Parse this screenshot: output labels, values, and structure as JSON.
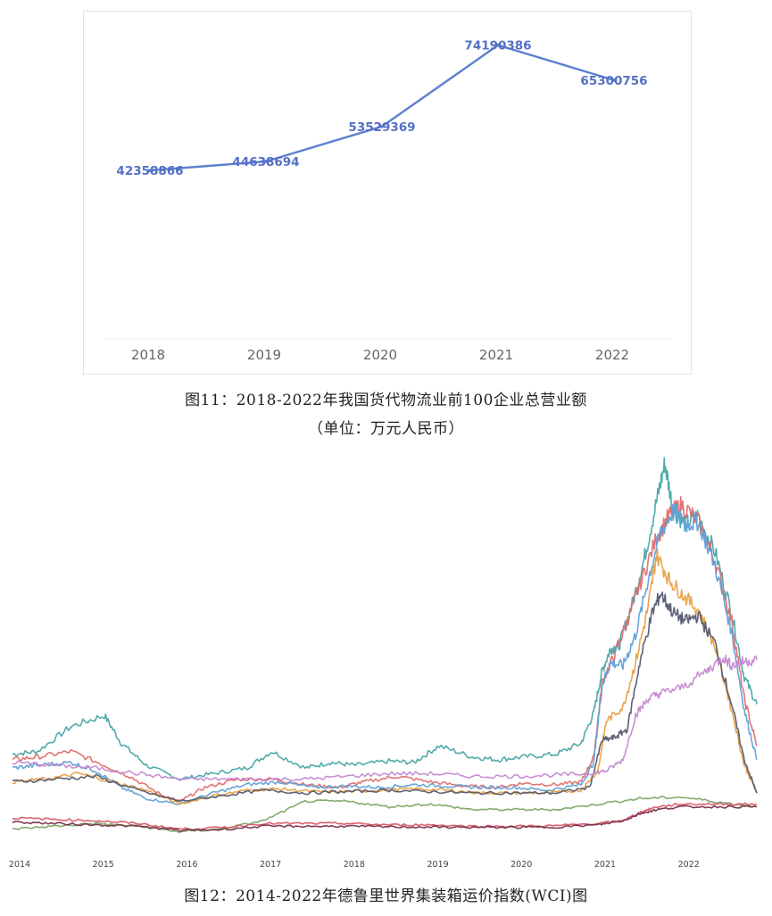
{
  "chart_data": [
    {
      "type": "line",
      "categories": [
        "2018",
        "2019",
        "2020",
        "2021",
        "2022"
      ],
      "values": [
        42358866,
        44638694,
        53529369,
        74190386,
        65300756
      ],
      "data_labels": [
        "42358866",
        "44638694",
        "53529369",
        "74190386",
        "65300756"
      ],
      "title": "图11：2018-2022年我国货代物流业前100企业总营业额",
      "subtitle": "（单位：万元人民币）",
      "ylim": [
        0,
        80000000
      ],
      "grid": false,
      "colors": {
        "line": "#5b7fcf",
        "label": "#5470c6",
        "axis_text": "#666666"
      }
    },
    {
      "type": "line",
      "title": "图12：2014-2022年德鲁里世界集装箱运价指数(WCI)图",
      "x_ticks": [
        "2014",
        "2015",
        "2016",
        "2017",
        "2018",
        "2019",
        "2020",
        "2021",
        "2022"
      ],
      "x_range": [
        2014.0,
        2022.9
      ],
      "ylim": [
        0,
        14000
      ],
      "grid": false,
      "series": [
        {
          "color": "#4aa5a5",
          "x": [
            2014.0,
            2014.3,
            2014.7,
            2015.1,
            2015.3,
            2015.6,
            2016.0,
            2016.4,
            2016.8,
            2017.1,
            2017.5,
            2017.8,
            2018.1,
            2018.5,
            2018.8,
            2019.1,
            2019.5,
            2019.8,
            2020.1,
            2020.5,
            2020.8,
            2020.95,
            2021.05,
            2021.15,
            2021.25,
            2021.4,
            2021.55,
            2021.7,
            2021.8,
            2021.9,
            2022.05,
            2022.2,
            2022.4,
            2022.6,
            2022.75,
            2022.9
          ],
          "y": [
            3200,
            3300,
            4200,
            4600,
            3600,
            2800,
            2300,
            2500,
            2700,
            3300,
            2700,
            2900,
            2800,
            2950,
            2900,
            3500,
            3100,
            3000,
            3100,
            3200,
            3600,
            4700,
            6200,
            7000,
            7100,
            8500,
            10200,
            12300,
            13700,
            12000,
            11500,
            11800,
            10500,
            8300,
            6000,
            5000
          ]
        },
        {
          "color": "#e26d6d",
          "x": [
            2014.0,
            2014.3,
            2014.7,
            2015.1,
            2015.4,
            2015.8,
            2016.0,
            2016.3,
            2016.7,
            2017.1,
            2017.5,
            2017.9,
            2018.2,
            2018.6,
            2019.0,
            2019.4,
            2019.8,
            2020.1,
            2020.5,
            2020.8,
            2020.95,
            2021.05,
            2021.2,
            2021.35,
            2021.5,
            2021.7,
            2021.85,
            2022.0,
            2022.2,
            2022.4,
            2022.6,
            2022.75,
            2022.9
          ],
          "y": [
            3000,
            3100,
            3300,
            2800,
            2400,
            1700,
            1500,
            2000,
            2300,
            2300,
            2100,
            2000,
            2200,
            2400,
            2200,
            2050,
            2000,
            2150,
            2100,
            2200,
            3100,
            5800,
            6800,
            8000,
            9300,
            11000,
            11800,
            12200,
            11600,
            10200,
            8000,
            5200,
            3500
          ]
        },
        {
          "color": "#5fa0d8",
          "x": [
            2014.0,
            2014.3,
            2014.7,
            2015.0,
            2015.3,
            2015.6,
            2016.0,
            2016.4,
            2016.8,
            2017.2,
            2017.6,
            2018.0,
            2018.4,
            2018.8,
            2019.2,
            2019.6,
            2020.0,
            2020.4,
            2020.8,
            2020.95,
            2021.05,
            2021.15,
            2021.3,
            2021.45,
            2021.6,
            2021.75,
            2021.9,
            2022.05,
            2022.2,
            2022.4,
            2022.6,
            2022.75,
            2022.9
          ],
          "y": [
            2700,
            2800,
            2900,
            2600,
            2000,
            1600,
            1400,
            1800,
            2100,
            2200,
            2000,
            2050,
            2000,
            2100,
            2050,
            2000,
            2000,
            1900,
            2100,
            2900,
            5700,
            6500,
            6400,
            7500,
            9500,
            11200,
            12000,
            11500,
            11600,
            10000,
            7600,
            4800,
            3000
          ]
        },
        {
          "color": "#e8a042",
          "x": [
            2014.0,
            2014.4,
            2014.8,
            2015.2,
            2015.6,
            2016.0,
            2016.4,
            2016.8,
            2017.2,
            2017.6,
            2018.0,
            2018.4,
            2018.8,
            2019.2,
            2019.6,
            2020.0,
            2020.4,
            2020.8,
            2021.0,
            2021.1,
            2021.3,
            2021.45,
            2021.6,
            2021.7,
            2021.85,
            2022.0,
            2022.2,
            2022.4,
            2022.6,
            2022.75,
            2022.9
          ],
          "y": [
            2200,
            2300,
            2500,
            2200,
            1900,
            1400,
            1700,
            1900,
            1950,
            1850,
            1850,
            1900,
            1950,
            1900,
            1800,
            1800,
            1800,
            1900,
            2600,
            4400,
            4900,
            6500,
            8500,
            10400,
            9500,
            9000,
            8400,
            7100,
            4800,
            2800,
            1800
          ]
        },
        {
          "color": "#555a6e",
          "x": [
            2014.0,
            2014.5,
            2015.0,
            2015.5,
            2016.0,
            2016.5,
            2017.0,
            2017.5,
            2018.0,
            2018.5,
            2019.0,
            2019.5,
            2020.0,
            2020.5,
            2020.9,
            2021.05,
            2021.2,
            2021.35,
            2021.5,
            2021.65,
            2021.75,
            2021.9,
            2022.05,
            2022.2,
            2022.4,
            2022.6,
            2022.75,
            2022.9
          ],
          "y": [
            2200,
            2300,
            2400,
            1900,
            1500,
            1700,
            1900,
            1800,
            1850,
            1900,
            1850,
            1800,
            1800,
            1800,
            2000,
            3700,
            3800,
            4100,
            6500,
            8300,
            9000,
            8300,
            8000,
            8200,
            7200,
            5000,
            3000,
            1800
          ]
        },
        {
          "color": "#c48ad2",
          "x": [
            2014.0,
            2014.5,
            2015.0,
            2015.5,
            2016.0,
            2016.5,
            2017.0,
            2017.5,
            2018.0,
            2018.5,
            2019.0,
            2019.5,
            2020.0,
            2020.5,
            2020.9,
            2021.1,
            2021.3,
            2021.45,
            2021.6,
            2021.75,
            2022.0,
            2022.3,
            2022.5,
            2022.6,
            2022.75,
            2022.9
          ],
          "y": [
            2900,
            2800,
            2700,
            2500,
            2300,
            2300,
            2300,
            2300,
            2400,
            2500,
            2500,
            2400,
            2400,
            2450,
            2500,
            2600,
            3000,
            4600,
            5200,
            5400,
            5600,
            6200,
            6700,
            6400,
            6550,
            6600
          ]
        },
        {
          "color": "#7aa866",
          "x": [
            2014.0,
            2014.5,
            2015.0,
            2015.5,
            2016.0,
            2016.5,
            2017.0,
            2017.5,
            2018.0,
            2018.5,
            2019.0,
            2019.5,
            2020.0,
            2020.5,
            2021.0,
            2021.5,
            2022.0,
            2022.5,
            2022.9
          ],
          "y": [
            500,
            600,
            700,
            600,
            400,
            500,
            800,
            1500,
            1500,
            1300,
            1400,
            1200,
            1200,
            1200,
            1400,
            1600,
            1650,
            1450,
            1300
          ]
        },
        {
          "color": "#d85a6a",
          "x": [
            2014.0,
            2014.5,
            2015.0,
            2015.5,
            2016.0,
            2016.5,
            2017.0,
            2017.5,
            2018.0,
            2018.5,
            2019.0,
            2019.5,
            2020.0,
            2020.5,
            2021.0,
            2021.3,
            2021.5,
            2021.7,
            2022.0,
            2022.5,
            2022.9
          ],
          "y": [
            900,
            850,
            800,
            700,
            500,
            550,
            700,
            700,
            700,
            650,
            650,
            600,
            600,
            620,
            700,
            800,
            1100,
            1300,
            1400,
            1400,
            1400
          ]
        },
        {
          "color": "#7a3048",
          "x": [
            2014.0,
            2014.5,
            2015.0,
            2015.5,
            2016.0,
            2016.5,
            2017.0,
            2017.5,
            2018.0,
            2018.5,
            2019.0,
            2019.5,
            2020.0,
            2020.5,
            2021.0,
            2021.3,
            2021.5,
            2021.7,
            2022.0,
            2022.5,
            2022.9
          ],
          "y": [
            750,
            700,
            650,
            600,
            450,
            480,
            600,
            600,
            600,
            580,
            570,
            560,
            560,
            570,
            650,
            800,
            1050,
            1200,
            1300,
            1300,
            1300
          ]
        }
      ]
    }
  ]
}
